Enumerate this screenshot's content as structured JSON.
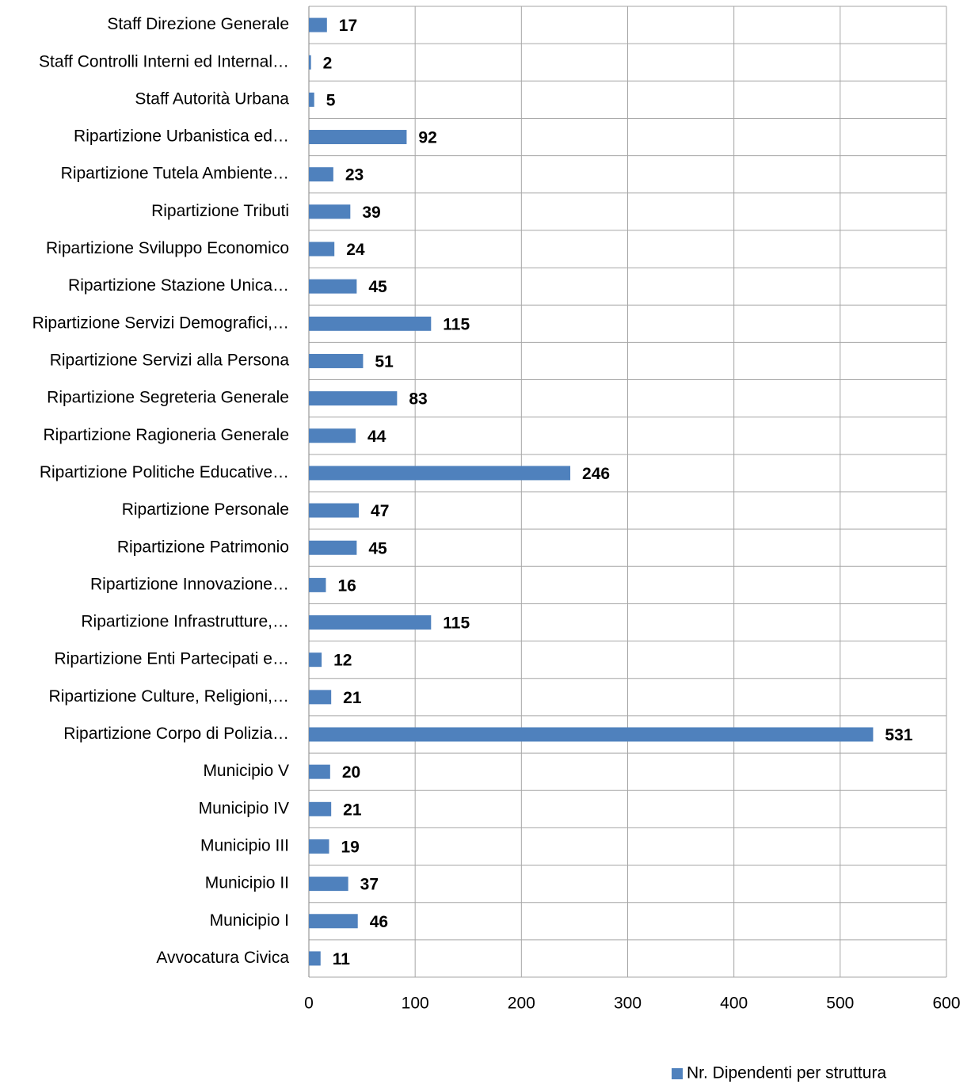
{
  "chart_data": {
    "type": "bar",
    "orientation": "horizontal",
    "categories": [
      "Staff Direzione Generale",
      "Staff Controlli Interni ed Internal…",
      "Staff Autorità Urbana",
      "Ripartizione Urbanistica ed…",
      "Ripartizione Tutela Ambiente…",
      "Ripartizione Tributi",
      "Ripartizione Sviluppo Economico",
      "Ripartizione Stazione Unica…",
      "Ripartizione Servizi Demografici,…",
      "Ripartizione Servizi alla Persona",
      "Ripartizione Segreteria Generale",
      "Ripartizione Ragioneria Generale",
      "Ripartizione Politiche Educative…",
      "Ripartizione Personale",
      "Ripartizione Patrimonio",
      "Ripartizione Innovazione…",
      "Ripartizione Infrastrutture,…",
      "Ripartizione Enti Partecipati e…",
      "Ripartizione Culture, Religioni,…",
      "Ripartizione Corpo di Polizia…",
      "Municipio V",
      "Municipio IV",
      "Municipio III",
      "Municipio II",
      "Municipio I",
      "Avvocatura Civica"
    ],
    "series": [
      {
        "name": "Nr. Dipendenti per struttura",
        "color": "#4f81bd",
        "values": [
          17,
          2,
          5,
          92,
          23,
          39,
          24,
          45,
          115,
          51,
          83,
          44,
          246,
          47,
          45,
          16,
          115,
          12,
          21,
          531,
          20,
          21,
          19,
          37,
          46,
          11
        ]
      }
    ],
    "xlim": [
      0,
      600
    ],
    "xticks": [
      0,
      100,
      200,
      300,
      400,
      500,
      600
    ],
    "grid": true,
    "legend": "bottom-right"
  }
}
